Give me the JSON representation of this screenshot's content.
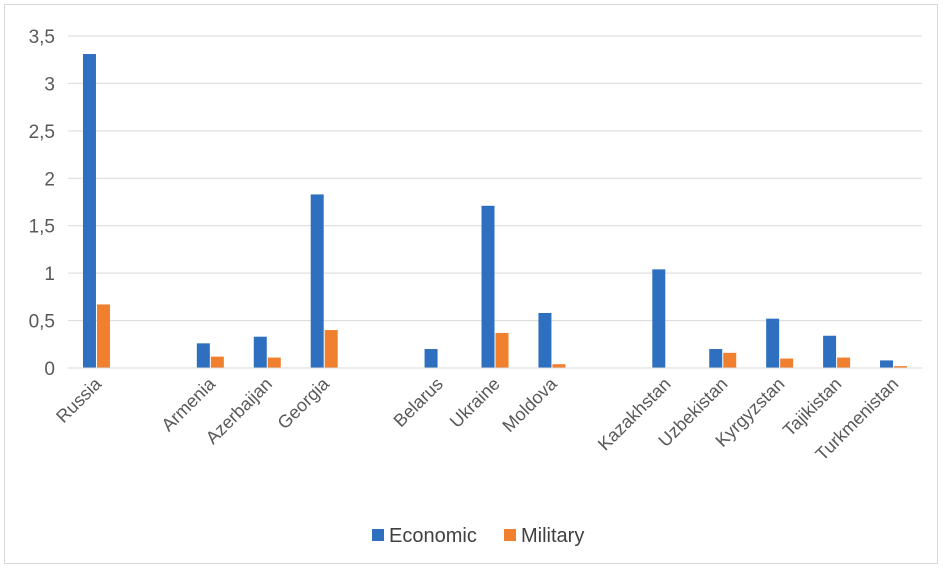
{
  "chart_data": {
    "type": "bar",
    "categories": [
      "Russia",
      "",
      "Armenia",
      "Azerbaijan",
      "Georgia",
      "",
      "Belarus",
      "Ukraine",
      "Moldova",
      "",
      "Kazakhstan",
      "Uzbekistan",
      "Kyrgyzstan",
      "Tajikistan",
      "Turkmenistan"
    ],
    "series": [
      {
        "name": "Economic",
        "color": "#2e6fbf",
        "values": [
          3.31,
          null,
          0.26,
          0.33,
          1.83,
          null,
          0.2,
          1.71,
          0.58,
          null,
          1.04,
          0.2,
          0.52,
          0.34,
          0.08
        ]
      },
      {
        "name": "Military",
        "color": "#f07f2e",
        "values": [
          0.67,
          null,
          0.12,
          0.11,
          0.4,
          null,
          0.0,
          0.37,
          0.04,
          null,
          0.0,
          0.16,
          0.1,
          0.11,
          0.02
        ]
      }
    ],
    "ylim": [
      0,
      3.5
    ],
    "yticks": [
      0,
      0.5,
      1,
      1.5,
      2,
      2.5,
      3,
      3.5
    ],
    "ytick_labels": [
      "0",
      "0,5",
      "1",
      "1,5",
      "2",
      "2,5",
      "3",
      "3,5"
    ],
    "grid": true,
    "legend": "bottom"
  }
}
